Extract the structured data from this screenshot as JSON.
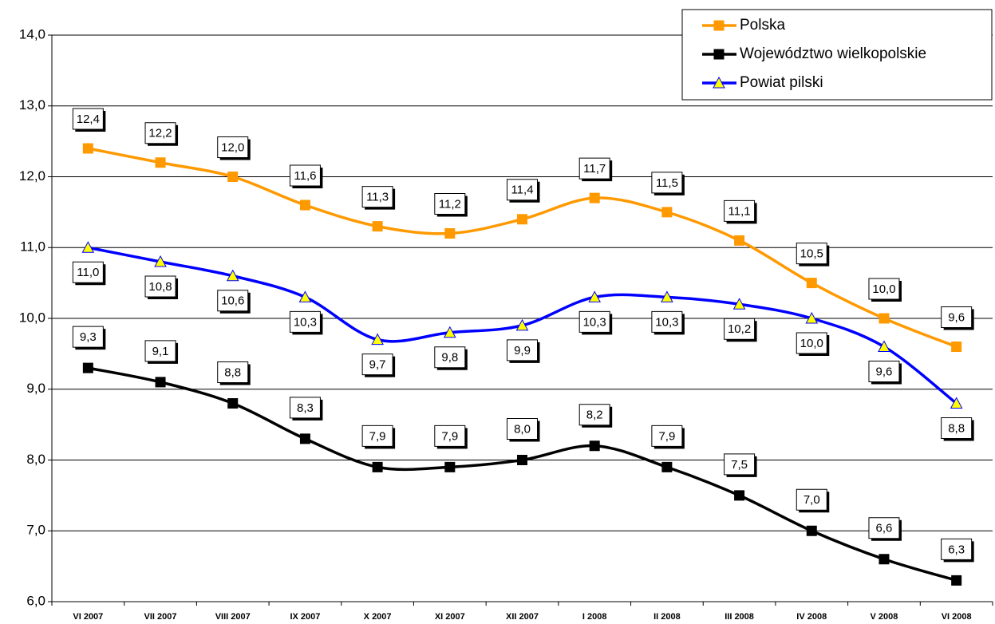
{
  "chart_data": {
    "type": "line",
    "categories": [
      "VI 2007",
      "VII 2007",
      "VIII 2007",
      "IX 2007",
      "X 2007",
      "XI 2007",
      "XII 2007",
      "I 2008",
      "II 2008",
      "III 2008",
      "IV 2008",
      "V 2008",
      "VI 2008"
    ],
    "series": [
      {
        "name": "Polska",
        "color": "#ff9900",
        "marker": "square",
        "values": [
          12.4,
          12.2,
          12.0,
          11.6,
          11.3,
          11.2,
          11.4,
          11.7,
          11.5,
          11.1,
          10.5,
          10.0,
          9.6
        ],
        "value_labels": [
          "12,4",
          "12,2",
          "12,0",
          "11,6",
          "11,3",
          "11,2",
          "11,4",
          "11,7",
          "11,5",
          "11,1",
          "10,5",
          "10,0",
          "9,6"
        ]
      },
      {
        "name": "Województwo wielkopolskie",
        "color": "#000000",
        "marker": "square",
        "values": [
          9.3,
          9.1,
          8.8,
          8.3,
          7.9,
          7.9,
          8.0,
          8.2,
          7.9,
          7.5,
          7.0,
          6.6,
          6.3
        ],
        "value_labels": [
          "9,3",
          "9,1",
          "8,8",
          "8,3",
          "7,9",
          "7,9",
          "8,0",
          "8,2",
          "7,9",
          "7,5",
          "7,0",
          "6,6",
          "6,3"
        ]
      },
      {
        "name": "Powiat pilski",
        "color": "#0000ff",
        "marker": "triangle",
        "values": [
          11.0,
          10.8,
          10.6,
          10.3,
          9.7,
          9.8,
          9.9,
          10.3,
          10.3,
          10.2,
          10.0,
          9.6,
          8.8
        ],
        "value_labels": [
          "11,0",
          "10,8",
          "10,6",
          "10,3",
          "9,7",
          "9,8",
          "9,9",
          "10,3",
          "10,3",
          "10,2",
          "10,0",
          "9,6",
          "8,8"
        ]
      }
    ],
    "ylim": [
      6,
      14
    ],
    "yticks": [
      {
        "value": 6,
        "label": "6,0"
      },
      {
        "value": 7,
        "label": "7,0"
      },
      {
        "value": 8,
        "label": "8,0"
      },
      {
        "value": 9,
        "label": "9,0"
      },
      {
        "value": 10,
        "label": "10,0"
      },
      {
        "value": 11,
        "label": "11,0"
      },
      {
        "value": 12,
        "label": "12,0"
      },
      {
        "value": 13,
        "label": "13,0"
      },
      {
        "value": 14,
        "label": "14,0"
      }
    ],
    "grid": true,
    "legend": "top-right"
  }
}
